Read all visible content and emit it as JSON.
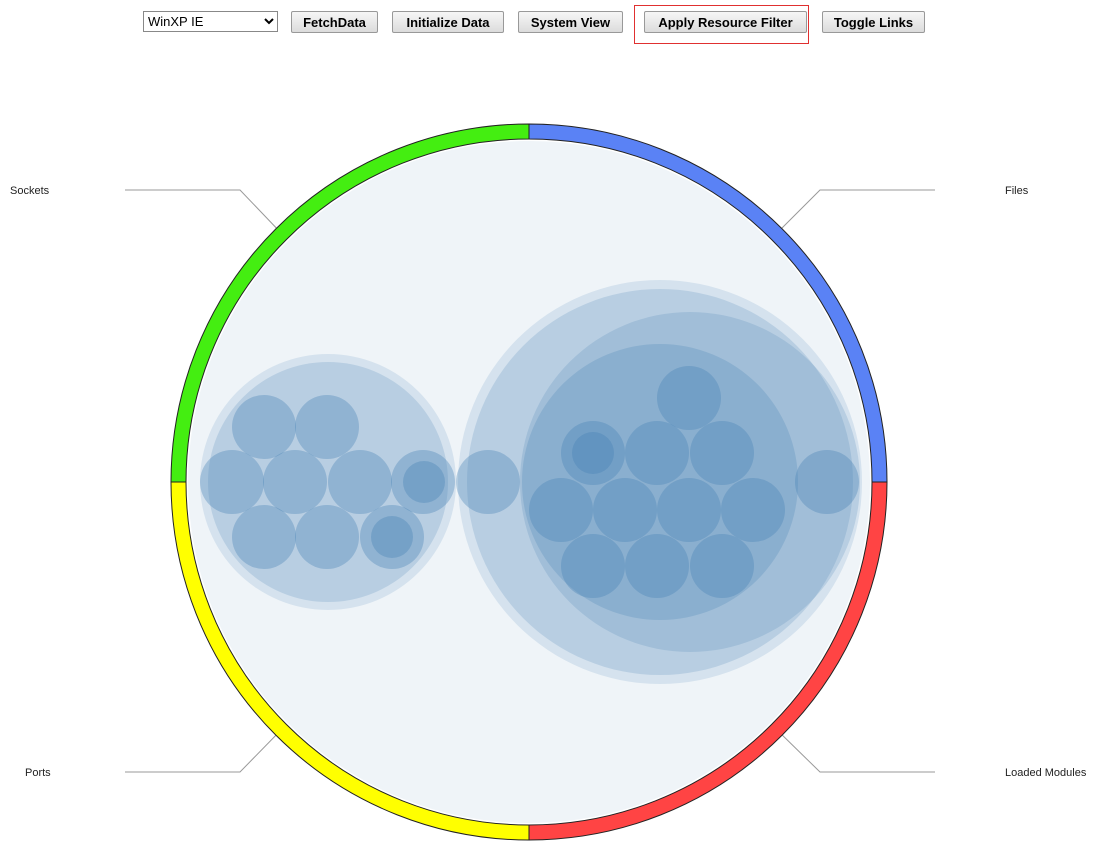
{
  "toolbar": {
    "dataset": "WinXP IE",
    "buttons": [
      "FetchData",
      "Initialize Data",
      "System View",
      "Apply Resource Filter",
      "Toggle Links"
    ]
  },
  "labels": {
    "top_left": "Sockets",
    "top_right": "Files",
    "bottom_left": "Ports",
    "bottom_right": "Loaded Modules"
  }
}
